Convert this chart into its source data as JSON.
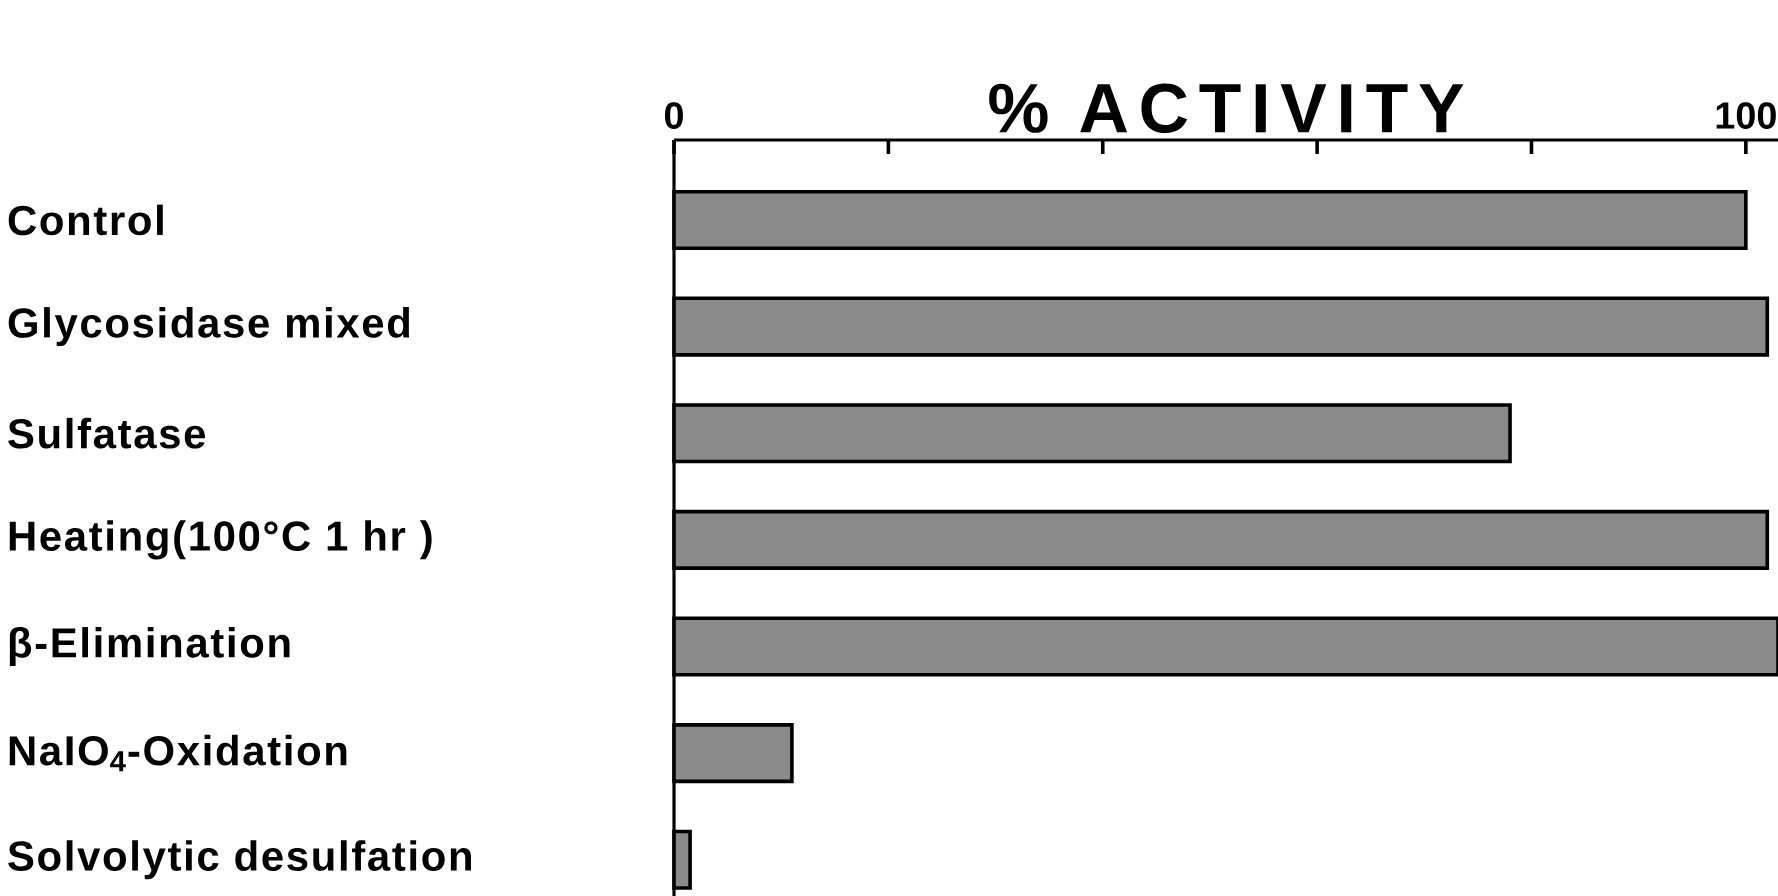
{
  "chart_data": {
    "type": "bar",
    "orientation": "horizontal",
    "title": "% ACTIVITY",
    "categories": [
      "Control",
      "Glycosidase mixed",
      "Sulfatase",
      "Heating(100°C 1 hr )",
      "β-Elimination",
      "NaIO$_{4}$-Oxidation",
      "Solvolytic desulfation"
    ],
    "values": [
      100,
      102,
      78,
      102,
      103,
      11,
      1.5
    ],
    "color": "#8a8a8a",
    "xlim": [
      0,
      103
    ],
    "xticks": [
      0,
      {
        "value": 20,
        "label": null
      },
      {
        "value": 40,
        "label": null
      },
      {
        "value": 60,
        "label": null
      },
      {
        "value": 80,
        "label": null
      },
      100
    ]
  }
}
